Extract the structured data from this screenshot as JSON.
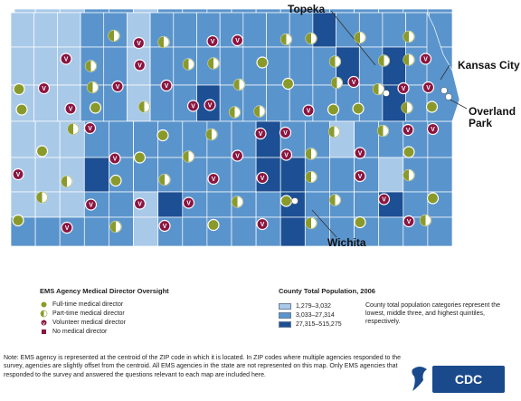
{
  "map": {
    "cities": {
      "topeka": "Topeka",
      "kansas_city": "Kansas City",
      "overland_park_line1": "Overland",
      "overland_park_line2": "Park",
      "wichita": "Wichita"
    },
    "marker_glyph": "V",
    "colors": {
      "low": "#a9c9e8",
      "mid": "#5a94cc",
      "high": "#1c4f93",
      "border": "#ffffff",
      "fulltime": "#8a9a2a",
      "volunteer": "#8a1540",
      "none": "#8a1540"
    },
    "markers": [
      {
        "t": "half",
        "c": [
          4,
          1
        ]
      },
      {
        "t": "vol",
        "c": [
          5,
          1
        ]
      },
      {
        "t": "half",
        "c": [
          6,
          1
        ]
      },
      {
        "t": "vol",
        "c": [
          8,
          1
        ]
      },
      {
        "t": "vol",
        "c": [
          9,
          1
        ]
      },
      {
        "t": "half",
        "c": [
          11,
          1
        ]
      },
      {
        "t": "half",
        "c": [
          12,
          1
        ]
      },
      {
        "t": "half",
        "c": [
          14,
          1
        ]
      },
      {
        "t": "half",
        "c": [
          16,
          1
        ]
      },
      {
        "t": "vol",
        "c": [
          2,
          2
        ]
      },
      {
        "t": "half",
        "c": [
          3,
          2
        ]
      },
      {
        "t": "vol",
        "c": [
          5,
          2
        ]
      },
      {
        "t": "half",
        "c": [
          7,
          2
        ]
      },
      {
        "t": "half",
        "c": [
          8,
          2
        ]
      },
      {
        "t": "full",
        "c": [
          10,
          2
        ]
      },
      {
        "t": "half",
        "c": [
          13,
          2
        ]
      },
      {
        "t": "half",
        "c": [
          15,
          2
        ]
      },
      {
        "t": "half",
        "c": [
          16,
          2
        ]
      },
      {
        "t": "vol",
        "c": [
          17,
          2
        ]
      },
      {
        "t": "full",
        "c": [
          0,
          3
        ]
      },
      {
        "t": "vol",
        "c": [
          1,
          3
        ]
      },
      {
        "t": "half",
        "c": [
          3,
          3
        ]
      },
      {
        "t": "vol",
        "c": [
          4,
          3
        ]
      },
      {
        "t": "vol",
        "c": [
          6,
          3
        ]
      },
      {
        "t": "half",
        "c": [
          9,
          3
        ]
      },
      {
        "t": "full",
        "c": [
          11,
          3
        ]
      },
      {
        "t": "half",
        "c": [
          13,
          3
        ]
      },
      {
        "t": "vol",
        "c": [
          14,
          3
        ]
      },
      {
        "t": "half",
        "c": [
          15,
          3
        ]
      },
      {
        "t": "vol",
        "c": [
          16,
          3
        ]
      },
      {
        "t": "vol",
        "c": [
          17,
          3
        ]
      },
      {
        "t": "full",
        "c": [
          0,
          4
        ]
      },
      {
        "t": "vol",
        "c": [
          2,
          4
        ]
      },
      {
        "t": "full",
        "c": [
          3,
          4
        ]
      },
      {
        "t": "half",
        "c": [
          5,
          4
        ]
      },
      {
        "t": "vol",
        "c": [
          7,
          4
        ]
      },
      {
        "t": "vol",
        "c": [
          8,
          4
        ]
      },
      {
        "t": "half",
        "c": [
          9,
          4
        ]
      },
      {
        "t": "half",
        "c": [
          10,
          4
        ]
      },
      {
        "t": "vol",
        "c": [
          12,
          4
        ]
      },
      {
        "t": "full",
        "c": [
          13,
          4
        ]
      },
      {
        "t": "full",
        "c": [
          14,
          4
        ]
      },
      {
        "t": "half",
        "c": [
          16,
          4
        ]
      },
      {
        "t": "full",
        "c": [
          17,
          4
        ]
      },
      {
        "t": "half",
        "c": [
          2,
          5
        ]
      },
      {
        "t": "vol",
        "c": [
          3,
          5
        ]
      },
      {
        "t": "full",
        "c": [
          6,
          5
        ]
      },
      {
        "t": "half",
        "c": [
          8,
          5
        ]
      },
      {
        "t": "vol",
        "c": [
          10,
          5
        ]
      },
      {
        "t": "vol",
        "c": [
          11,
          5
        ]
      },
      {
        "t": "half",
        "c": [
          13,
          5
        ]
      },
      {
        "t": "half",
        "c": [
          15,
          5
        ]
      },
      {
        "t": "vol",
        "c": [
          16,
          5
        ]
      },
      {
        "t": "vol",
        "c": [
          17,
          5
        ]
      },
      {
        "t": "full",
        "c": [
          1,
          6
        ]
      },
      {
        "t": "vol",
        "c": [
          4,
          6
        ]
      },
      {
        "t": "full",
        "c": [
          5,
          6
        ]
      },
      {
        "t": "half",
        "c": [
          7,
          6
        ]
      },
      {
        "t": "vol",
        "c": [
          9,
          6
        ]
      },
      {
        "t": "vol",
        "c": [
          11,
          6
        ]
      },
      {
        "t": "half",
        "c": [
          12,
          6
        ]
      },
      {
        "t": "vol",
        "c": [
          14,
          6
        ]
      },
      {
        "t": "full",
        "c": [
          16,
          6
        ]
      },
      {
        "t": "vol",
        "c": [
          0,
          7
        ]
      },
      {
        "t": "half",
        "c": [
          2,
          7
        ]
      },
      {
        "t": "full",
        "c": [
          4,
          7
        ]
      },
      {
        "t": "half",
        "c": [
          6,
          7
        ]
      },
      {
        "t": "vol",
        "c": [
          8,
          7
        ]
      },
      {
        "t": "vol",
        "c": [
          10,
          7
        ]
      },
      {
        "t": "half",
        "c": [
          12,
          7
        ]
      },
      {
        "t": "vol",
        "c": [
          14,
          7
        ]
      },
      {
        "t": "half",
        "c": [
          16,
          7
        ]
      },
      {
        "t": "half",
        "c": [
          1,
          8
        ]
      },
      {
        "t": "vol",
        "c": [
          3,
          8
        ]
      },
      {
        "t": "vol",
        "c": [
          5,
          8
        ]
      },
      {
        "t": "vol",
        "c": [
          7,
          8
        ]
      },
      {
        "t": "half",
        "c": [
          9,
          8
        ]
      },
      {
        "t": "full",
        "c": [
          11,
          8
        ]
      },
      {
        "t": "half",
        "c": [
          13,
          8
        ]
      },
      {
        "t": "vol",
        "c": [
          15,
          8
        ]
      },
      {
        "t": "full",
        "c": [
          17,
          8
        ]
      },
      {
        "t": "full",
        "c": [
          0,
          9
        ]
      },
      {
        "t": "vol",
        "c": [
          2,
          9
        ]
      },
      {
        "t": "half",
        "c": [
          4,
          9
        ]
      },
      {
        "t": "vol",
        "c": [
          6,
          9
        ]
      },
      {
        "t": "full",
        "c": [
          8,
          9
        ]
      },
      {
        "t": "vol",
        "c": [
          10,
          9
        ]
      },
      {
        "t": "half",
        "c": [
          12,
          9
        ]
      },
      {
        "t": "full",
        "c": [
          14,
          9
        ]
      },
      {
        "t": "vol",
        "c": [
          16,
          9
        ]
      },
      {
        "t": "half",
        "c": [
          17,
          9
        ]
      }
    ]
  },
  "legend": {
    "title": "EMS Agency Medical Director Oversight",
    "items": [
      {
        "type": "full",
        "label": "Full-time medical director"
      },
      {
        "type": "half",
        "label": "Part-time medical director"
      },
      {
        "type": "vol",
        "label": "Volunteer medical director"
      },
      {
        "type": "none",
        "label": "No medical director"
      }
    ]
  },
  "population_legend": {
    "title": "County Total Population, 2006",
    "items": [
      {
        "label": "1,279–3,032",
        "color": "#a9c9e8"
      },
      {
        "label": "3,033–27,314",
        "color": "#5a94cc"
      },
      {
        "label": "27,315–515,275",
        "color": "#1c4f93"
      }
    ],
    "note": "County total population categories represent the lowest, middle three, and highest quintiles, respectively."
  },
  "footnote": "Note: EMS agency is represented at the centroid of the ZIP code in which it is located. In ZIP codes where multiple agencies responded to the survey, agencies are slightly offset from the centroid. All EMS agencies in the state are not represented on this map. Only EMS agencies that responded to the survey and answered the questions relevant to each map are included here.",
  "logo": {
    "text": "CDC"
  }
}
